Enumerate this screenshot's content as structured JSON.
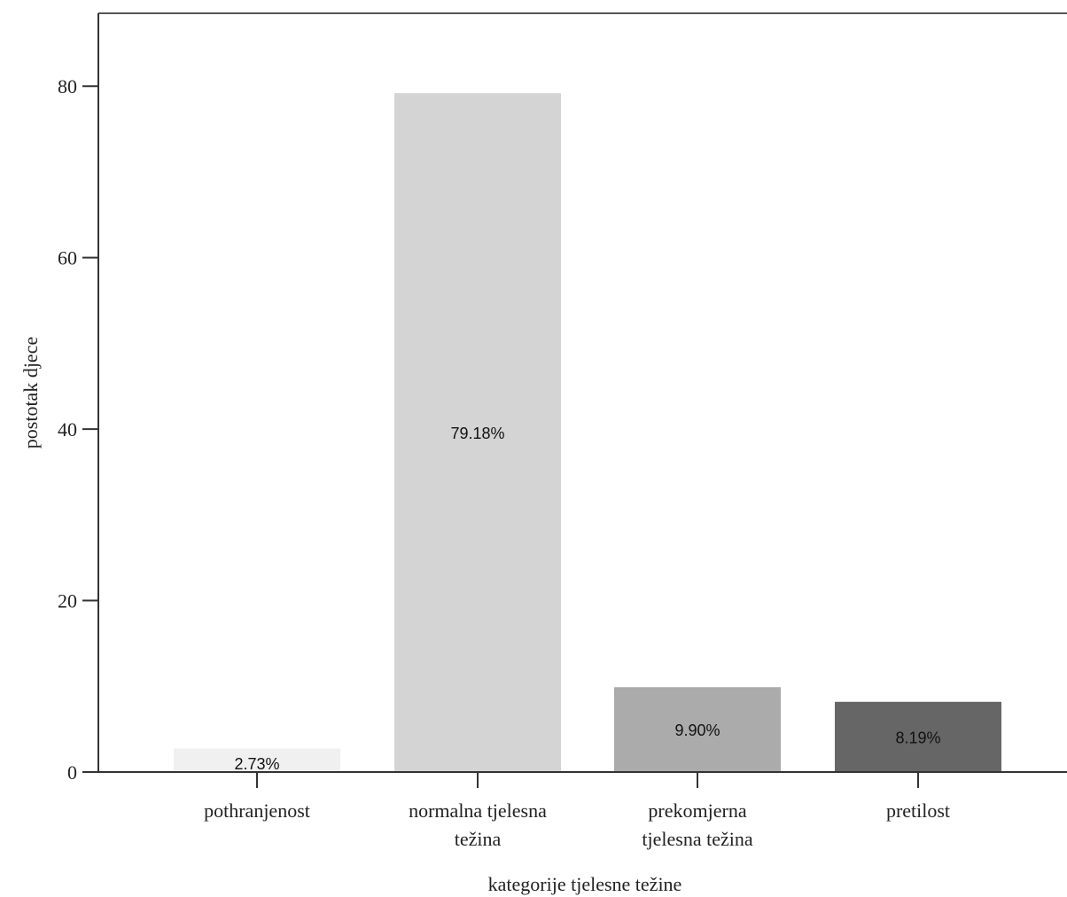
{
  "chart_data": {
    "type": "bar",
    "categories": [
      [
        "pothranjenost"
      ],
      [
        "normalna tjelesna",
        "težina"
      ],
      [
        "prekomjerna",
        "tjelesna težina"
      ],
      [
        "pretilost"
      ]
    ],
    "values": [
      2.73,
      79.18,
      9.9,
      8.19
    ],
    "data_labels": [
      "2.73%",
      "79.18%",
      "9.90%",
      "8.19%"
    ],
    "bar_colors": [
      "#f0f0f0",
      "#d4d4d4",
      "#ababab",
      "#666666"
    ],
    "xlabel": "kategorije tjelesne težine",
    "ylabel": "postotak djece",
    "yticks": [
      0,
      20,
      40,
      60,
      80
    ],
    "ylim": [
      0,
      88.5
    ],
    "grid": false
  }
}
